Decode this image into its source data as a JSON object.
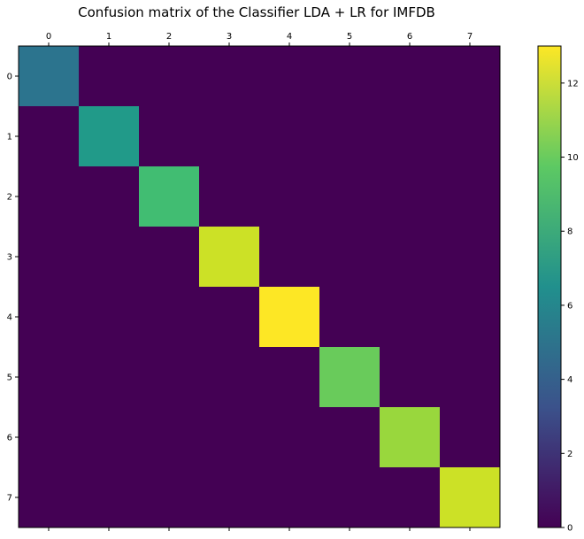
{
  "chart_data": {
    "type": "heatmap",
    "title": "Confusion matrix of the Classifier LDA + LR for IMFDB",
    "xlabel": "",
    "ylabel": "",
    "x_categories": [
      "0",
      "1",
      "2",
      "3",
      "4",
      "5",
      "6",
      "7"
    ],
    "y_categories": [
      "0",
      "1",
      "2",
      "3",
      "4",
      "5",
      "6",
      "7"
    ],
    "x_tick_position": "top",
    "matrix": [
      [
        5,
        0,
        0,
        0,
        0,
        0,
        0,
        0
      ],
      [
        0,
        7,
        0,
        0,
        0,
        0,
        0,
        0
      ],
      [
        0,
        0,
        9,
        0,
        0,
        0,
        0,
        0
      ],
      [
        0,
        0,
        0,
        12,
        0,
        0,
        0,
        0
      ],
      [
        0,
        0,
        0,
        0,
        13,
        0,
        0,
        0
      ],
      [
        0,
        0,
        0,
        0,
        0,
        10,
        0,
        0
      ],
      [
        0,
        0,
        0,
        0,
        0,
        0,
        11,
        0
      ],
      [
        0,
        0,
        0,
        0,
        0,
        0,
        0,
        12
      ]
    ],
    "colormap": "viridis",
    "colorbar": {
      "range": [
        0,
        13
      ],
      "ticks": [
        "0",
        "2",
        "4",
        "6",
        "8",
        "10",
        "12"
      ]
    },
    "grid": false
  }
}
